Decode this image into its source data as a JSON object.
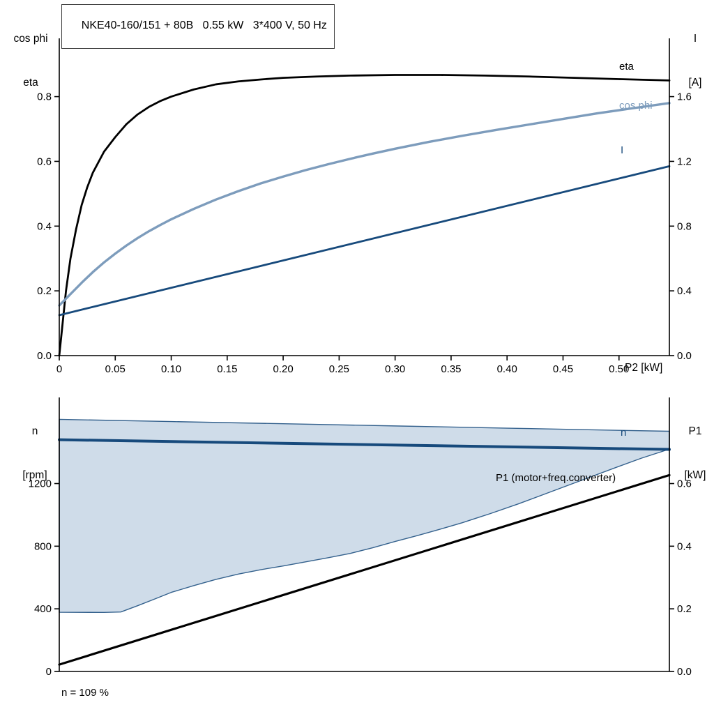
{
  "title": "NKE40-160/151 + 80B   0.55 kW   3*400 V, 50 Hz",
  "labels": {
    "top_left_axis_line1": "cos phi",
    "top_left_axis_line2": "eta",
    "top_right_axis_line1": "I",
    "top_right_axis_line2": "[A]",
    "x_axis": "P2 [kW]",
    "eta_curve": "eta",
    "cos_phi_curve": "cos phi",
    "current_curve": "I",
    "bottom_left_axis_line1": "n",
    "bottom_left_axis_line2": "[rpm]",
    "bottom_right_axis_line1": "P1",
    "bottom_right_axis_line2": "[kW]",
    "n_curve": "n",
    "p1_curve": "P1 (motor+freq.converter)",
    "note": "n = 109 %"
  },
  "colors": {
    "black": "#000000",
    "steel_blue": "#7d9cbc",
    "navy": "#174a7c",
    "band_fill": "#cfdce9",
    "band_stroke": "#34618d",
    "axis": "#000000"
  },
  "chart_data": [
    {
      "type": "line",
      "title": "NKE40-160/151 + 80B 0.55 kW 3*400 V, 50 Hz",
      "x_axis": {
        "label": "P2 [kW]",
        "min": 0,
        "max": 0.545,
        "ticks": [
          {
            "v": 0,
            "t": "0"
          },
          {
            "v": 0.05,
            "t": "0.05"
          },
          {
            "v": 0.1,
            "t": "0.10"
          },
          {
            "v": 0.15,
            "t": "0.15"
          },
          {
            "v": 0.2,
            "t": "0.20"
          },
          {
            "v": 0.25,
            "t": "0.25"
          },
          {
            "v": 0.3,
            "t": "0.30"
          },
          {
            "v": 0.35,
            "t": "0.35"
          },
          {
            "v": 0.4,
            "t": "0.40"
          },
          {
            "v": 0.45,
            "t": "0.45"
          },
          {
            "v": 0.5,
            "t": "0.50"
          }
        ]
      },
      "left_axis": {
        "label": "cos phi / eta",
        "min": 0,
        "max": 0.98,
        "ticks": [
          {
            "v": 0,
            "t": "0.0"
          },
          {
            "v": 0.2,
            "t": "0.2"
          },
          {
            "v": 0.4,
            "t": "0.4"
          },
          {
            "v": 0.6,
            "t": "0.6"
          },
          {
            "v": 0.8,
            "t": "0.8"
          }
        ]
      },
      "right_axis": {
        "label": "I [A]",
        "min": 0,
        "max": 1.96,
        "ticks": [
          {
            "v": 0,
            "t": "0.0"
          },
          {
            "v": 0.4,
            "t": "0.4"
          },
          {
            "v": 0.8,
            "t": "0.8"
          },
          {
            "v": 1.2,
            "t": "1.2"
          },
          {
            "v": 1.6,
            "t": "1.6"
          }
        ]
      },
      "series": [
        {
          "name": "eta",
          "axis": "left",
          "color": "#000000",
          "width": 2.8,
          "points": [
            [
              0,
              0
            ],
            [
              0.003,
              0.1
            ],
            [
              0.006,
              0.2
            ],
            [
              0.01,
              0.3
            ],
            [
              0.015,
              0.39
            ],
            [
              0.02,
              0.465
            ],
            [
              0.025,
              0.52
            ],
            [
              0.03,
              0.565
            ],
            [
              0.04,
              0.63
            ],
            [
              0.05,
              0.675
            ],
            [
              0.06,
              0.715
            ],
            [
              0.07,
              0.745
            ],
            [
              0.08,
              0.768
            ],
            [
              0.09,
              0.786
            ],
            [
              0.1,
              0.8
            ],
            [
              0.12,
              0.822
            ],
            [
              0.14,
              0.838
            ],
            [
              0.16,
              0.847
            ],
            [
              0.18,
              0.853
            ],
            [
              0.2,
              0.858
            ],
            [
              0.23,
              0.862
            ],
            [
              0.26,
              0.865
            ],
            [
              0.3,
              0.867
            ],
            [
              0.34,
              0.867
            ],
            [
              0.38,
              0.865
            ],
            [
              0.42,
              0.862
            ],
            [
              0.46,
              0.858
            ],
            [
              0.5,
              0.854
            ],
            [
              0.545,
              0.85
            ]
          ]
        },
        {
          "name": "cos phi",
          "axis": "left",
          "color": "#7d9cbc",
          "width": 3.4,
          "points": [
            [
              0,
              0.155
            ],
            [
              0.01,
              0.19
            ],
            [
              0.02,
              0.225
            ],
            [
              0.03,
              0.258
            ],
            [
              0.04,
              0.288
            ],
            [
              0.05,
              0.315
            ],
            [
              0.06,
              0.34
            ],
            [
              0.07,
              0.363
            ],
            [
              0.08,
              0.384
            ],
            [
              0.09,
              0.403
            ],
            [
              0.1,
              0.421
            ],
            [
              0.12,
              0.453
            ],
            [
              0.14,
              0.482
            ],
            [
              0.16,
              0.508
            ],
            [
              0.18,
              0.532
            ],
            [
              0.2,
              0.553
            ],
            [
              0.22,
              0.573
            ],
            [
              0.24,
              0.591
            ],
            [
              0.26,
              0.608
            ],
            [
              0.28,
              0.624
            ],
            [
              0.3,
              0.639
            ],
            [
              0.33,
              0.66
            ],
            [
              0.36,
              0.679
            ],
            [
              0.39,
              0.697
            ],
            [
              0.42,
              0.714
            ],
            [
              0.45,
              0.731
            ],
            [
              0.48,
              0.748
            ],
            [
              0.51,
              0.763
            ],
            [
              0.545,
              0.78
            ]
          ]
        },
        {
          "name": "I",
          "axis": "right",
          "color": "#174a7c",
          "width": 2.8,
          "points": [
            [
              0,
              0.25
            ],
            [
              0.545,
              1.17
            ]
          ]
        }
      ]
    },
    {
      "type": "line+band",
      "x_axis": {
        "label": "",
        "min": 0,
        "max": 0.545,
        "ticks": []
      },
      "left_axis": {
        "label": "n [rpm]",
        "min": 0,
        "max": 1750,
        "ticks": [
          {
            "v": 0,
            "t": "0"
          },
          {
            "v": 400,
            "t": "400"
          },
          {
            "v": 800,
            "t": "800"
          },
          {
            "v": 1200,
            "t": "1200"
          }
        ]
      },
      "right_axis": {
        "label": "P1 [kW]",
        "min": 0,
        "max": 0.875,
        "ticks": [
          {
            "v": 0,
            "t": "0.0"
          },
          {
            "v": 0.2,
            "t": "0.2"
          },
          {
            "v": 0.4,
            "t": "0.4"
          },
          {
            "v": 0.6,
            "t": "0.6"
          }
        ]
      },
      "band": {
        "name": "speed-control-range",
        "axis": "left",
        "fill": "#cfdce9",
        "stroke": "#34618d",
        "stroke_width": 1.4,
        "upper": [
          [
            0,
            1610
          ],
          [
            0.1,
            1596
          ],
          [
            0.2,
            1582
          ],
          [
            0.3,
            1568
          ],
          [
            0.4,
            1554
          ],
          [
            0.5,
            1540
          ],
          [
            0.545,
            1534
          ]
        ],
        "lower": [
          [
            0,
            378
          ],
          [
            0.04,
            377
          ],
          [
            0.055,
            380
          ],
          [
            0.07,
            420
          ],
          [
            0.085,
            462
          ],
          [
            0.1,
            505
          ],
          [
            0.12,
            548
          ],
          [
            0.14,
            588
          ],
          [
            0.16,
            622
          ],
          [
            0.18,
            650
          ],
          [
            0.2,
            674
          ],
          [
            0.22,
            700
          ],
          [
            0.24,
            726
          ],
          [
            0.26,
            754
          ],
          [
            0.28,
            790
          ],
          [
            0.3,
            830
          ],
          [
            0.32,
            868
          ],
          [
            0.34,
            908
          ],
          [
            0.36,
            950
          ],
          [
            0.375,
            985
          ],
          [
            0.385,
            1008
          ],
          [
            0.41,
            1070
          ],
          [
            0.44,
            1150
          ],
          [
            0.47,
            1230
          ],
          [
            0.5,
            1310
          ],
          [
            0.52,
            1362
          ],
          [
            0.545,
            1420
          ]
        ]
      },
      "series": [
        {
          "name": "n",
          "axis": "left",
          "color": "#174a7c",
          "width": 4,
          "points": [
            [
              0,
              1480
            ],
            [
              0.545,
              1418
            ]
          ]
        },
        {
          "name": "P1 (motor+freq.converter)",
          "axis": "right",
          "color": "#000000",
          "width": 3.2,
          "points": [
            [
              0,
              0.022
            ],
            [
              0.545,
              0.627
            ]
          ]
        }
      ],
      "note": "n = 109 %"
    }
  ]
}
